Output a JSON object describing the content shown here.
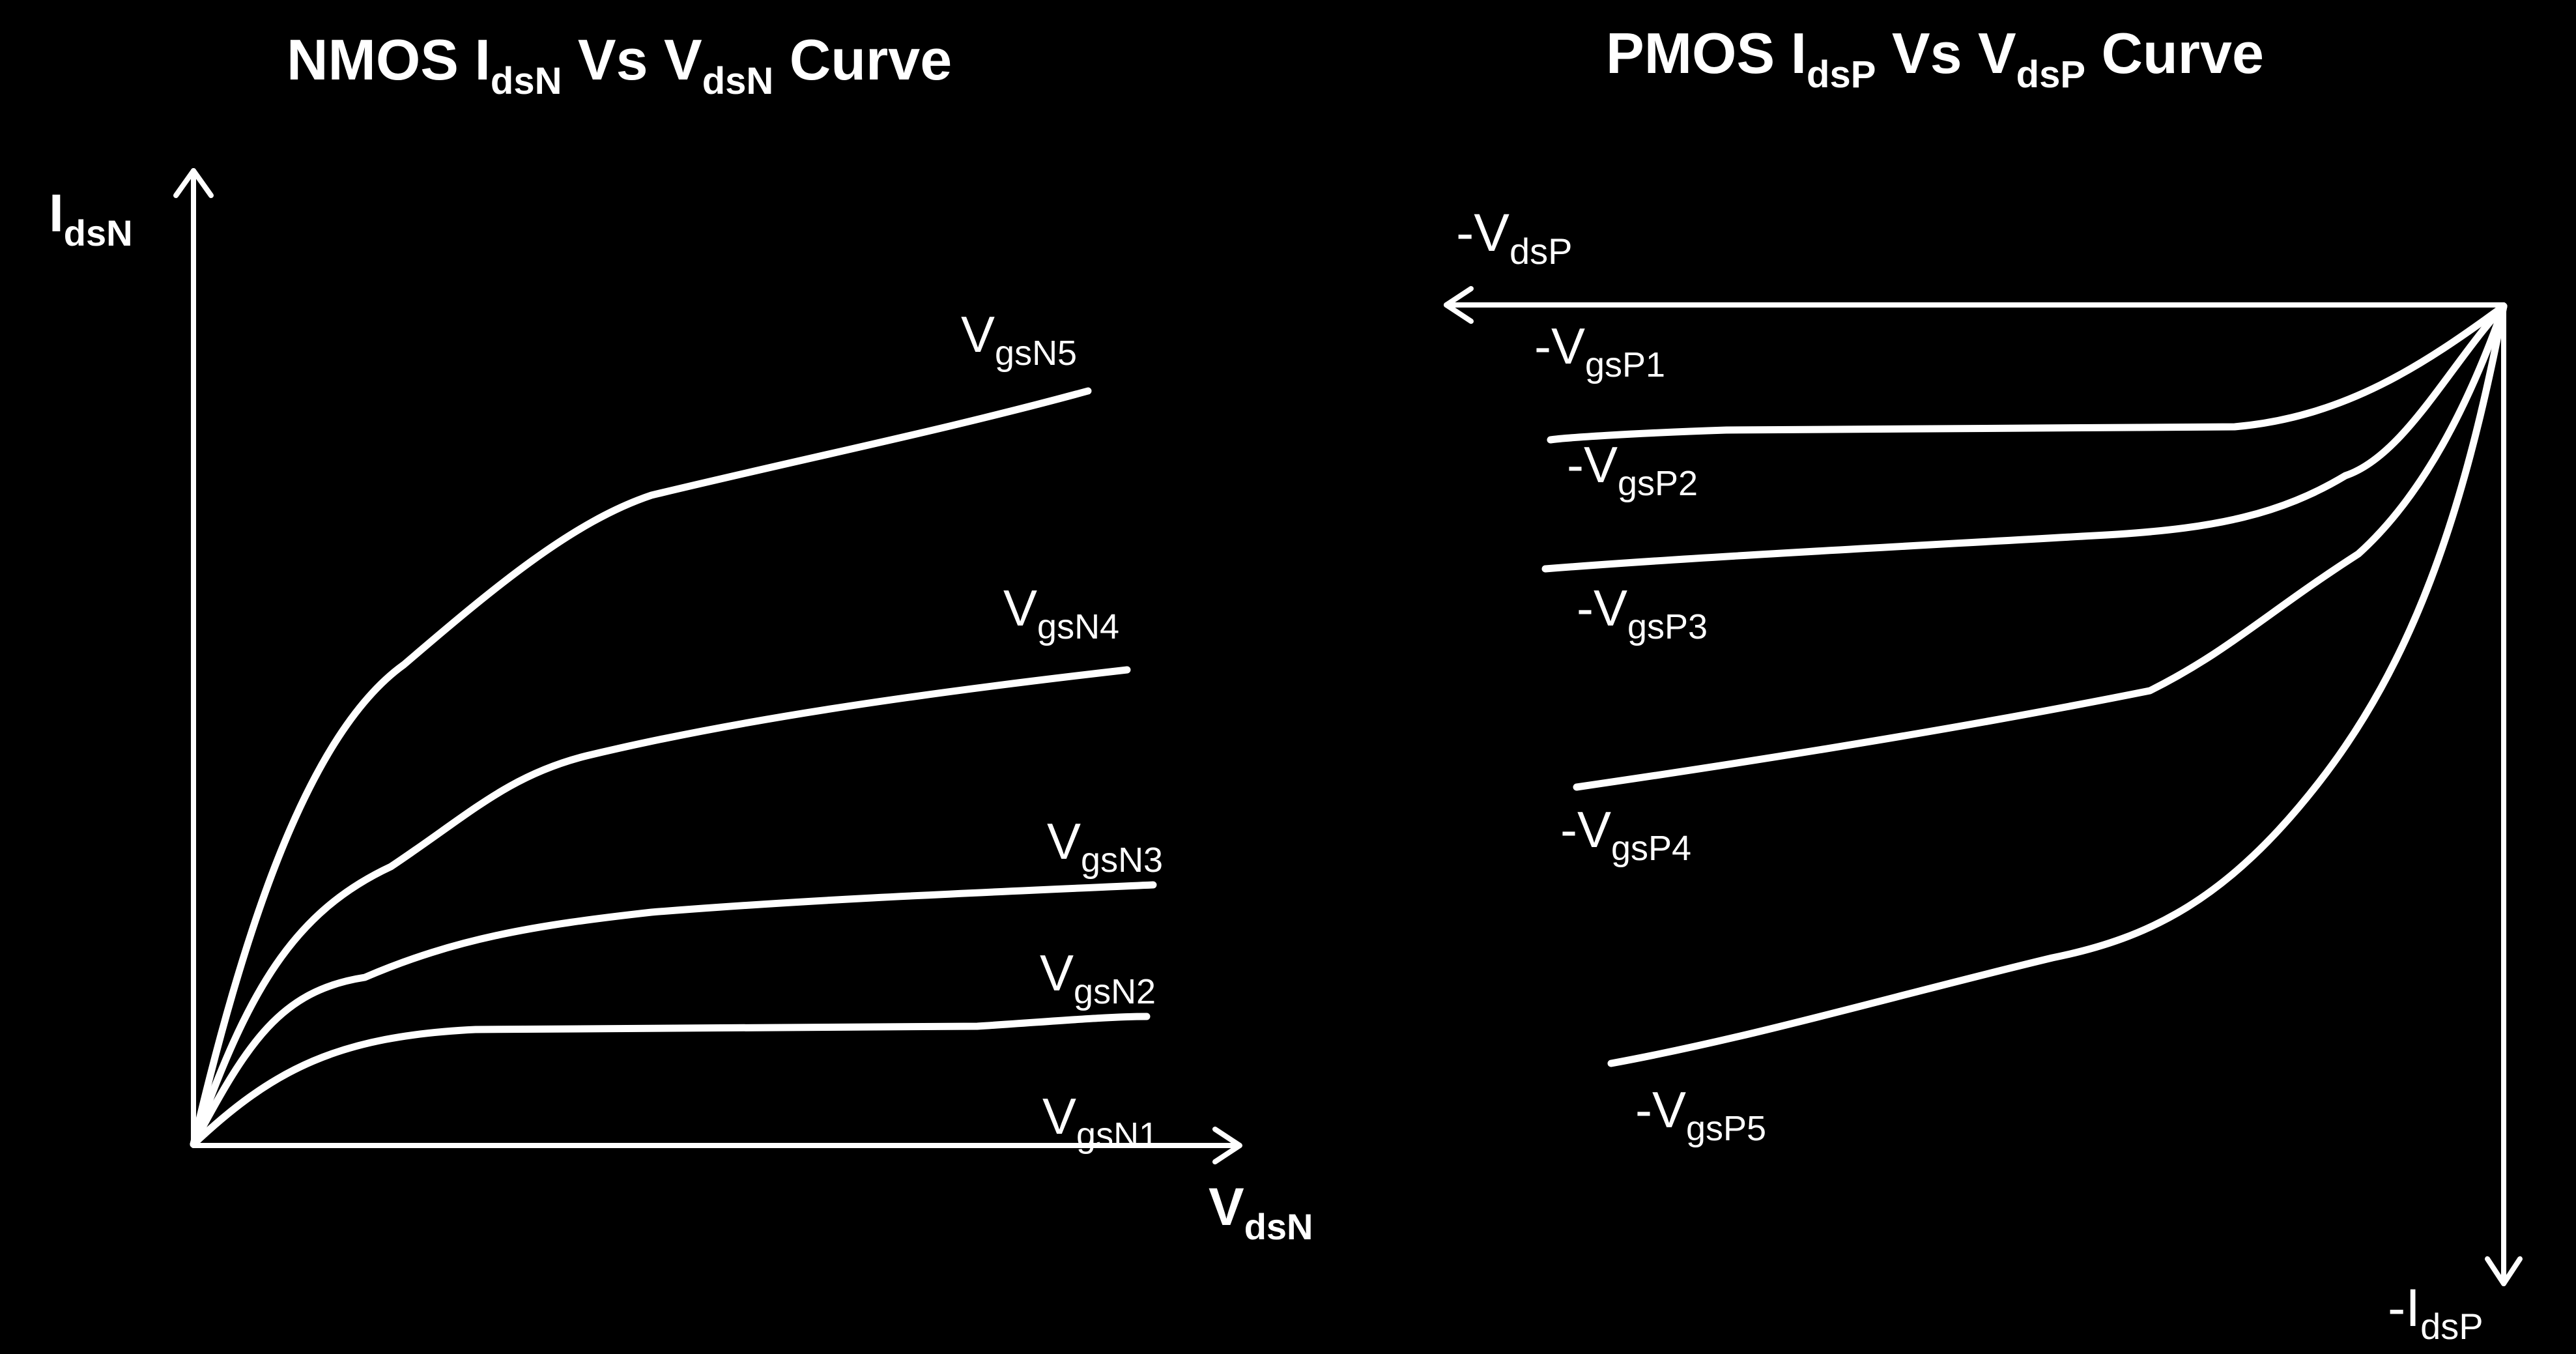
{
  "nmos": {
    "title": {
      "a": "NMOS I",
      "a_sub": "dsN",
      "b": " Vs V",
      "b_sub": "dsN",
      "c": " Curve"
    },
    "y_axis": {
      "main": "I",
      "sub": "dsN"
    },
    "x_axis": {
      "main": "V",
      "sub": "dsN"
    },
    "curves": [
      {
        "main": "V",
        "sub": "gsN1"
      },
      {
        "main": "V",
        "sub": "gsN2"
      },
      {
        "main": "V",
        "sub": "gsN3"
      },
      {
        "main": "V",
        "sub": "gsN4"
      },
      {
        "main": "V",
        "sub": "gsN5"
      }
    ]
  },
  "pmos": {
    "title": {
      "a": "PMOS I",
      "a_sub": "dsP",
      "b": " Vs V",
      "b_sub": "dsP",
      "c": " Curve"
    },
    "x_axis": {
      "main": "-V",
      "sub": "dsP"
    },
    "y_axis": {
      "main": "-I",
      "sub": "dsP"
    },
    "curves": [
      {
        "main": "-V",
        "sub": "gsP1"
      },
      {
        "main": "-V",
        "sub": "gsP2"
      },
      {
        "main": "-V",
        "sub": "gsP3"
      },
      {
        "main": "-V",
        "sub": "gsP4"
      },
      {
        "main": "-V",
        "sub": "gsP5"
      }
    ]
  },
  "colors": {
    "background": "#000000",
    "foreground": "#ffffff"
  }
}
